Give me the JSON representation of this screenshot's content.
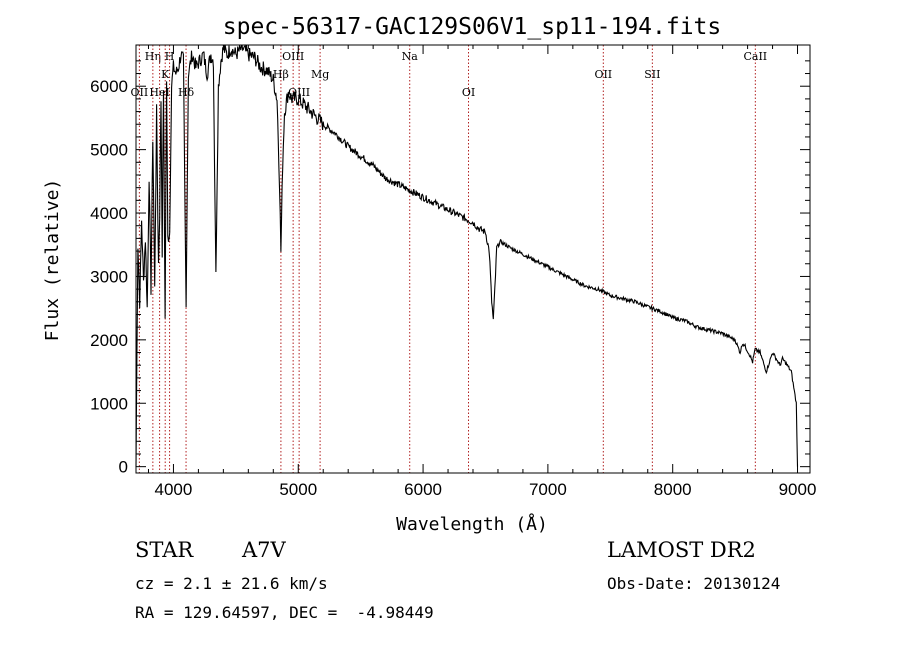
{
  "chart_data": {
    "type": "line",
    "title": "spec-56317-GAC129S06V1_sp11-194.fits",
    "xlabel": "Wavelength (Å)",
    "ylabel": "Flux (relative)",
    "xlim": [
      3700,
      9100
    ],
    "ylim": [
      -100,
      6650
    ],
    "xticks": [
      4000,
      5000,
      6000,
      7000,
      8000,
      9000
    ],
    "yticks": [
      0,
      1000,
      2000,
      3000,
      4000,
      5000,
      6000
    ],
    "series": [
      {
        "x": [
          3700,
          3715,
          3730,
          3745,
          3760,
          3775,
          3790,
          3805,
          3820,
          3835,
          3850,
          3865,
          3880,
          3890,
          3900,
          3910,
          3920,
          3933,
          3945,
          3955,
          3970,
          3985,
          4000,
          4020,
          4040,
          4060,
          4080,
          4101,
          4120,
          4150,
          4180,
          4210,
          4240,
          4270,
          4300,
          4320,
          4340,
          4360,
          4380,
          4400,
          4430,
          4460,
          4500,
          4550,
          4600,
          4650,
          4700,
          4750,
          4800,
          4830,
          4850,
          4861,
          4875,
          4890,
          4920,
          4950,
          5000,
          5050,
          5100,
          5150,
          5200,
          5300,
          5400,
          5500,
          5600,
          5700,
          5800,
          5900,
          6000,
          6100,
          6200,
          6300,
          6400,
          6450,
          6500,
          6530,
          6550,
          6563,
          6575,
          6590,
          6620,
          6700,
          6800,
          6900,
          7000,
          7100,
          7200,
          7300,
          7400,
          7500,
          7600,
          7700,
          7800,
          7900,
          8000,
          8100,
          8200,
          8300,
          8400,
          8500,
          8540,
          8560,
          8580,
          8620,
          8640,
          8660,
          8700,
          8750,
          8800,
          8860,
          8880,
          8900,
          8950,
          8990,
          9000
        ],
        "y": [
          0,
          3500,
          2600,
          3900,
          2900,
          3600,
          2500,
          4600,
          2800,
          5200,
          2800,
          5600,
          3200,
          4000,
          5800,
          3400,
          6000,
          2400,
          6100,
          3600,
          3700,
          6000,
          6300,
          6200,
          6300,
          6500,
          6400,
          2500,
          6200,
          6500,
          6300,
          6400,
          6500,
          6200,
          6500,
          6400,
          3000,
          6000,
          6400,
          6600,
          6500,
          6600,
          6500,
          6600,
          6500,
          6450,
          6300,
          6250,
          6100,
          5800,
          4500,
          3400,
          4800,
          5600,
          5900,
          5800,
          5800,
          5700,
          5600,
          5500,
          5400,
          5250,
          5050,
          4900,
          4750,
          4550,
          4450,
          4350,
          4250,
          4150,
          4050,
          3950,
          3850,
          3750,
          3700,
          3400,
          2600,
          2300,
          2800,
          3450,
          3550,
          3450,
          3350,
          3250,
          3150,
          3050,
          2950,
          2850,
          2800,
          2700,
          2650,
          2600,
          2520,
          2450,
          2350,
          2300,
          2200,
          2150,
          2100,
          2000,
          1800,
          1950,
          1900,
          1750,
          1650,
          1850,
          1800,
          1500,
          1800,
          1600,
          1700,
          1650,
          1500,
          1000,
          0
        ]
      }
    ],
    "lines": [
      {
        "wavelength": 3727,
        "label": "OII",
        "row": 2
      },
      {
        "wavelength": 3835,
        "label": "Hη",
        "row": 0
      },
      {
        "wavelength": 3889,
        "label": "HeI",
        "row": 2
      },
      {
        "wavelength": 3934,
        "label": "K",
        "row": 1
      },
      {
        "wavelength": 3969,
        "label": "H",
        "row": 0
      },
      {
        "wavelength": 4101,
        "label": "Hδ",
        "row": 2
      },
      {
        "wavelength": 4861,
        "label": "Hβ",
        "row": 1
      },
      {
        "wavelength": 4959,
        "label": "OIII",
        "row": 0
      },
      {
        "wavelength": 5007,
        "label": "OIII",
        "row": 2
      },
      {
        "wavelength": 5175,
        "label": "Mg",
        "row": 1
      },
      {
        "wavelength": 5893,
        "label": "Na",
        "row": 0
      },
      {
        "wavelength": 6364,
        "label": "OI",
        "row": 2
      },
      {
        "wavelength": 7444,
        "label": "OII",
        "row": 1
      },
      {
        "wavelength": 7837,
        "label": "SII",
        "row": 1
      },
      {
        "wavelength": 8662,
        "label": "CaII",
        "row": 0
      }
    ]
  },
  "info": {
    "object_type": "STAR",
    "subclass": "A7V",
    "survey": "LAMOST DR2",
    "cz": "cz = 2.1 ± 21.6 km/s",
    "obs_date": "Obs-Date: 20130124",
    "coords": "RA = 129.64597, DEC =  -4.98449"
  },
  "colors": {
    "spectrum": "#000000",
    "line_marker": "#b22222",
    "axis": "#000000"
  }
}
